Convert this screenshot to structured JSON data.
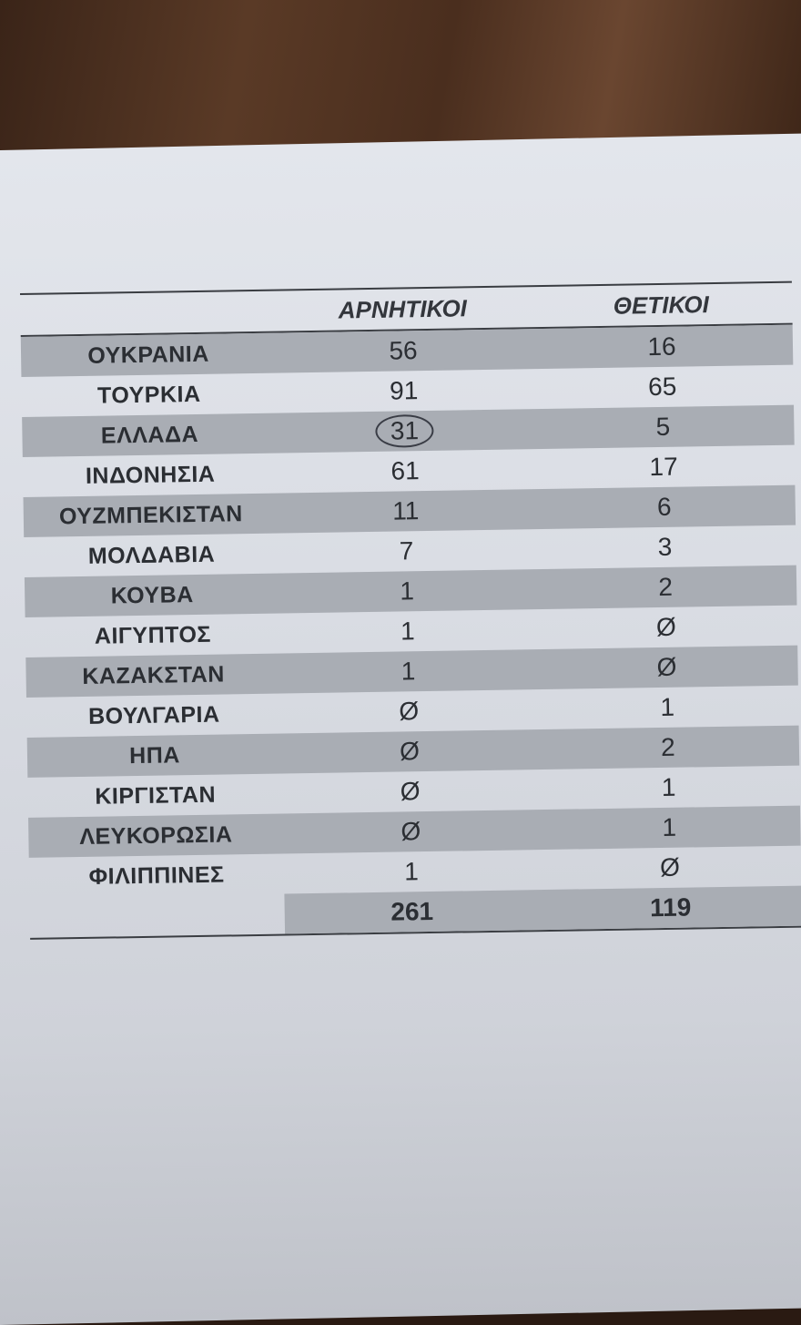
{
  "table": {
    "headers": [
      "",
      "ΑΡΝΗΤΙΚΟΙ",
      "ΘΕΤΙΚΟΙ"
    ],
    "rows": [
      {
        "country": "ΟΥΚΡΑΝΙΑ",
        "negative": "56",
        "positive": "16"
      },
      {
        "country": "ΤΟΥΡΚΙΑ",
        "negative": "91",
        "positive": "65"
      },
      {
        "country": "ΕΛΛΑΔΑ",
        "negative": "31",
        "positive": "5",
        "circled": true
      },
      {
        "country": "ΙΝΔΟΝΗΣΙΑ",
        "negative": "61",
        "positive": "17"
      },
      {
        "country": "ΟΥΖΜΠΕΚΙΣΤΑΝ",
        "negative": "11",
        "positive": "6"
      },
      {
        "country": "ΜΟΛΔΑΒΙΑ",
        "negative": "7",
        "positive": "3"
      },
      {
        "country": "ΚΟΥΒΑ",
        "negative": "1",
        "positive": "2"
      },
      {
        "country": "ΑΙΓΥΠΤΟΣ",
        "negative": "1",
        "positive": "Ø"
      },
      {
        "country": "ΚΑΖΑΚΣΤΑΝ",
        "negative": "1",
        "positive": "Ø"
      },
      {
        "country": "ΒΟΥΛΓΑΡΙΑ",
        "negative": "Ø",
        "positive": "1"
      },
      {
        "country": "ΗΠΑ",
        "negative": "Ø",
        "positive": "2"
      },
      {
        "country": "ΚΙΡΓΙΣΤΑΝ",
        "negative": "Ø",
        "positive": "1"
      },
      {
        "country": "ΛΕΥΚΟΡΩΣΙΑ",
        "negative": "Ø",
        "positive": "1"
      },
      {
        "country": "ΦΙΛΙΠΠΙΝΕΣ",
        "negative": "1",
        "positive": "Ø"
      }
    ],
    "totals": {
      "negative": "261",
      "positive": "119"
    }
  }
}
